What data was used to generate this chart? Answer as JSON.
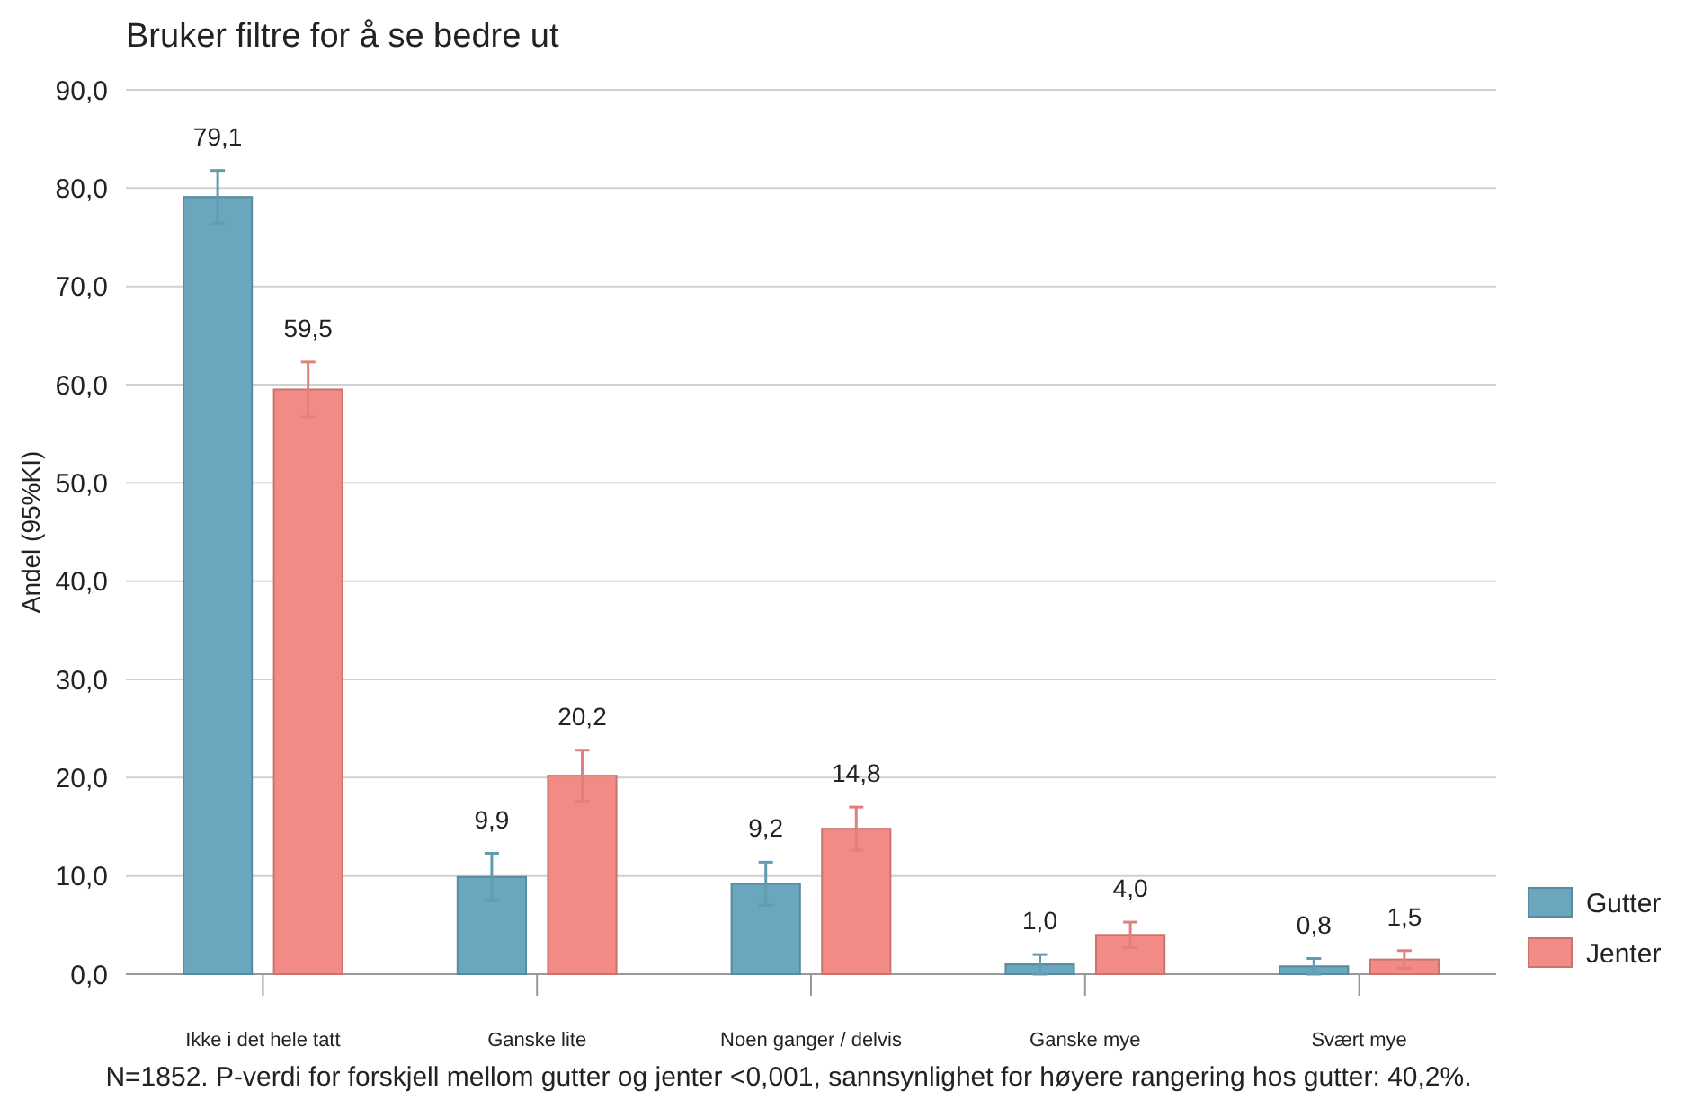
{
  "chart_data": {
    "type": "bar",
    "title": "Bruker filtre for å se bedre ut",
    "ylabel": "Andel (95%KI)",
    "categories": [
      "Ikke i det hele tatt",
      "Ganske lite",
      "Noen ganger / delvis",
      "Ganske mye",
      "Svært mye"
    ],
    "series": [
      {
        "name": "Gutter",
        "color": "#6aa6be",
        "values": [
          79.1,
          9.9,
          9.2,
          1.0,
          0.8
        ],
        "value_labels": [
          "79,1",
          "9,9",
          "9,2",
          "1,0",
          "0,8"
        ],
        "errors": [
          2.7,
          2.4,
          2.2,
          1.0,
          0.8
        ]
      },
      {
        "name": "Jenter",
        "color": "#f28b85",
        "values": [
          59.5,
          20.2,
          14.8,
          4.0,
          1.5
        ],
        "value_labels": [
          "59,5",
          "20,2",
          "14,8",
          "4,0",
          "1,5"
        ],
        "errors": [
          2.8,
          2.6,
          2.2,
          1.3,
          0.9
        ]
      }
    ],
    "ylim": [
      0,
      90
    ],
    "yticks": [
      {
        "value": 0,
        "label": "0,0"
      },
      {
        "value": 10,
        "label": "10,0"
      },
      {
        "value": 20,
        "label": "20,0"
      },
      {
        "value": 30,
        "label": "30,0"
      },
      {
        "value": 40,
        "label": "40,0"
      },
      {
        "value": 50,
        "label": "50,0"
      },
      {
        "value": 60,
        "label": "60,0"
      },
      {
        "value": 70,
        "label": "70,0"
      },
      {
        "value": 80,
        "label": "80,0"
      },
      {
        "value": 90,
        "label": "90,0"
      }
    ],
    "grid": "y",
    "legend": "bottom right",
    "annotations": [
      "N=1852. P-verdi for forskjell mellom gutter og jenter <0,001, sannsynlighet for høyere rangering hos gutter: 40,2%."
    ]
  }
}
